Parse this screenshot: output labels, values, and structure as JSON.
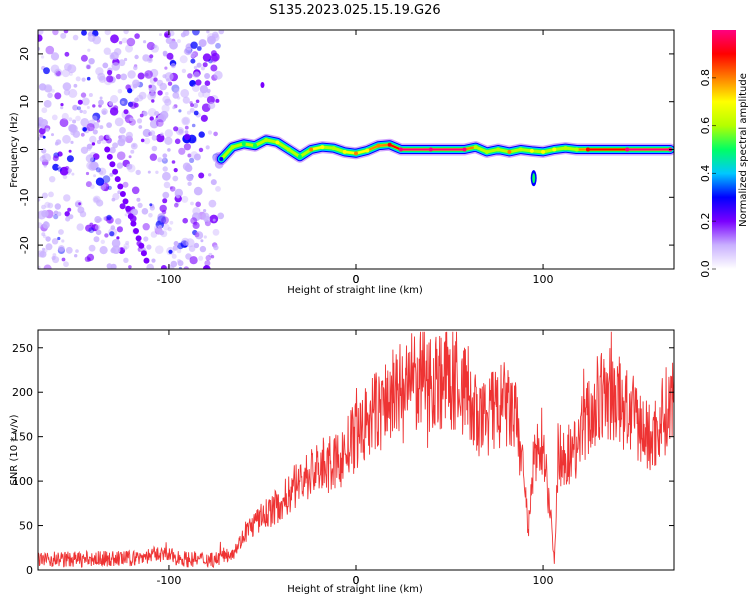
{
  "figure_title": "S135.2023.025.15.19.G26",
  "chart_data": [
    {
      "type": "heatmap",
      "title": "",
      "xlabel": "Height of straight line (km)",
      "ylabel": "Frequency (Hz)",
      "xlim": [
        -170,
        170
      ],
      "ylim": [
        -25,
        25
      ],
      "xticks": [
        -100,
        0,
        100
      ],
      "yticks": [
        -20,
        -10,
        0,
        10,
        20
      ],
      "colorbar": {
        "label": "Normalized spectral amplitude",
        "range": [
          0,
          1
        ],
        "ticks": [
          0.0,
          0.2,
          0.4,
          0.6,
          0.8
        ],
        "colormap": [
          "#ffffff",
          "#c9b0ff",
          "#7a00ff",
          "#0000ff",
          "#00c8ff",
          "#00ff64",
          "#b4ff00",
          "#ffff00",
          "#ff8000",
          "#ff0000",
          "#ff0080"
        ]
      },
      "noise_region": {
        "x_range": [
          -170,
          -72
        ],
        "y_range": [
          -25,
          25
        ]
      },
      "signal_track": [
        {
          "x": -72,
          "y": -2.0,
          "a": 0.3
        },
        {
          "x": -66,
          "y": 0.5,
          "a": 0.55
        },
        {
          "x": -60,
          "y": 1.2,
          "a": 0.45
        },
        {
          "x": -54,
          "y": 0.8,
          "a": 0.5
        },
        {
          "x": -48,
          "y": 2.0,
          "a": 0.6
        },
        {
          "x": -42,
          "y": 1.5,
          "a": 0.65
        },
        {
          "x": -36,
          "y": 0.0,
          "a": 0.55
        },
        {
          "x": -30,
          "y": -1.5,
          "a": 0.5
        },
        {
          "x": -24,
          "y": 0.0,
          "a": 0.75
        },
        {
          "x": -18,
          "y": 0.5,
          "a": 0.7
        },
        {
          "x": -12,
          "y": 0.3,
          "a": 0.6
        },
        {
          "x": -6,
          "y": -0.5,
          "a": 0.7
        },
        {
          "x": 0,
          "y": -0.8,
          "a": 0.75
        },
        {
          "x": 6,
          "y": -0.2,
          "a": 0.7
        },
        {
          "x": 12,
          "y": 0.8,
          "a": 0.8
        },
        {
          "x": 18,
          "y": 1.0,
          "a": 0.85
        },
        {
          "x": 24,
          "y": 0.0,
          "a": 0.95
        },
        {
          "x": 40,
          "y": 0.0,
          "a": 0.98
        },
        {
          "x": 58,
          "y": 0.0,
          "a": 0.95
        },
        {
          "x": 64,
          "y": 0.5,
          "a": 0.6
        },
        {
          "x": 70,
          "y": -0.5,
          "a": 0.55
        },
        {
          "x": 76,
          "y": 0.0,
          "a": 0.55
        },
        {
          "x": 82,
          "y": -0.5,
          "a": 0.75
        },
        {
          "x": 88,
          "y": 0.0,
          "a": 0.6
        },
        {
          "x": 94,
          "y": -0.3,
          "a": 0.7
        },
        {
          "x": 100,
          "y": -0.5,
          "a": 0.65
        },
        {
          "x": 106,
          "y": 0.0,
          "a": 0.7
        },
        {
          "x": 112,
          "y": 0.3,
          "a": 0.55
        },
        {
          "x": 118,
          "y": 0.0,
          "a": 0.6
        },
        {
          "x": 124,
          "y": 0.0,
          "a": 0.9
        },
        {
          "x": 145,
          "y": 0.0,
          "a": 0.95
        },
        {
          "x": 168,
          "y": 0.0,
          "a": 0.95
        }
      ]
    },
    {
      "type": "line",
      "title": "",
      "xlabel": "Height of straight line (km)",
      "ylabel": "SNR (10 * v/v)",
      "xlim": [
        -170,
        170
      ],
      "ylim": [
        0,
        270
      ],
      "xticks": [
        -100,
        0,
        100
      ],
      "yticks": [
        0,
        50,
        100,
        150,
        200,
        250
      ],
      "line_color": "#ee3333",
      "series_envelope": [
        {
          "x": -170,
          "y": 12
        },
        {
          "x": -150,
          "y": 12
        },
        {
          "x": -120,
          "y": 13
        },
        {
          "x": -105,
          "y": 18
        },
        {
          "x": -90,
          "y": 12
        },
        {
          "x": -75,
          "y": 12
        },
        {
          "x": -65,
          "y": 22
        },
        {
          "x": -58,
          "y": 45
        },
        {
          "x": -50,
          "y": 60
        },
        {
          "x": -40,
          "y": 75
        },
        {
          "x": -30,
          "y": 100
        },
        {
          "x": -20,
          "y": 115
        },
        {
          "x": -10,
          "y": 120
        },
        {
          "x": 0,
          "y": 150
        },
        {
          "x": 10,
          "y": 175
        },
        {
          "x": 20,
          "y": 195
        },
        {
          "x": 30,
          "y": 210
        },
        {
          "x": 40,
          "y": 215
        },
        {
          "x": 50,
          "y": 215
        },
        {
          "x": 60,
          "y": 200
        },
        {
          "x": 65,
          "y": 160
        },
        {
          "x": 70,
          "y": 175
        },
        {
          "x": 80,
          "y": 185
        },
        {
          "x": 85,
          "y": 170
        },
        {
          "x": 90,
          "y": 110
        },
        {
          "x": 92,
          "y": 40
        },
        {
          "x": 95,
          "y": 120
        },
        {
          "x": 100,
          "y": 150
        },
        {
          "x": 104,
          "y": 60
        },
        {
          "x": 106,
          "y": 12
        },
        {
          "x": 108,
          "y": 130
        },
        {
          "x": 115,
          "y": 130
        },
        {
          "x": 125,
          "y": 175
        },
        {
          "x": 135,
          "y": 200
        },
        {
          "x": 145,
          "y": 180
        },
        {
          "x": 152,
          "y": 160
        },
        {
          "x": 158,
          "y": 145
        },
        {
          "x": 164,
          "y": 175
        },
        {
          "x": 170,
          "y": 190
        }
      ]
    }
  ]
}
